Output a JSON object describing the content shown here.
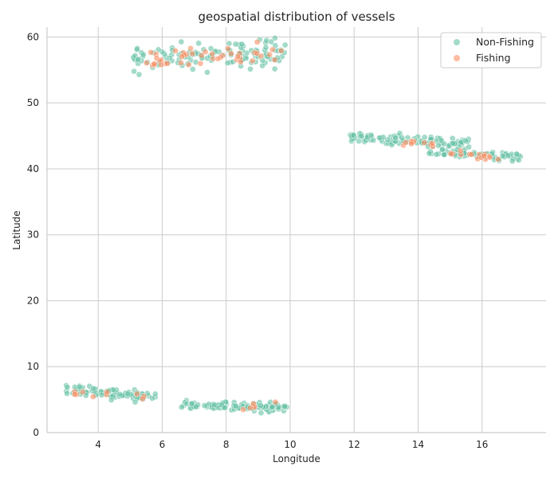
{
  "chart_data": {
    "type": "scatter",
    "title": "geospatial distribution of vessels",
    "xlabel": "Longitude",
    "ylabel": "Latitude",
    "xlim": [
      2.4,
      18.0
    ],
    "ylim": [
      0,
      61.5
    ],
    "xticks": [
      4,
      6,
      8,
      10,
      12,
      14,
      16
    ],
    "yticks": [
      0,
      10,
      20,
      30,
      40,
      50,
      60
    ],
    "grid": true,
    "legend_position": "top-right",
    "series": [
      {
        "name": "Non-Fishing",
        "color": "#66c2a5",
        "clusters": [
          {
            "x_range": [
              5.1,
              9.9
            ],
            "y_center": 57.1,
            "y_spread": 0.9,
            "count": 130,
            "tilt": 0.15
          },
          {
            "x_range": [
              11.8,
              15.7
            ],
            "y_center": 44.3,
            "y_spread": 0.35,
            "count": 110,
            "tilt": -0.35
          },
          {
            "x_range": [
              14.3,
              17.2
            ],
            "y_center": 42.2,
            "y_spread": 0.3,
            "count": 70,
            "tilt": -0.3
          },
          {
            "x_range": [
              3.0,
              5.9
            ],
            "y_center": 5.9,
            "y_spread": 0.4,
            "count": 90,
            "tilt": -0.4
          },
          {
            "x_range": [
              6.6,
              9.9
            ],
            "y_center": 4.0,
            "y_spread": 0.35,
            "count": 100,
            "tilt": -0.15
          }
        ]
      },
      {
        "name": "Fishing",
        "color": "#fc8d62",
        "clusters": [
          {
            "x_range": [
              5.4,
              9.8
            ],
            "y_center": 57.0,
            "y_spread": 0.8,
            "count": 45,
            "tilt": 0.2
          },
          {
            "x_range": [
              13.5,
              14.5
            ],
            "y_center": 43.9,
            "y_spread": 0.3,
            "count": 10,
            "tilt": -0.3
          },
          {
            "x_range": [
              14.5,
              16.6
            ],
            "y_center": 42.2,
            "y_spread": 0.3,
            "count": 15,
            "tilt": -0.3
          },
          {
            "x_range": [
              3.2,
              5.5
            ],
            "y_center": 5.7,
            "y_spread": 0.3,
            "count": 10,
            "tilt": -0.4
          },
          {
            "x_range": [
              8.5,
              9.6
            ],
            "y_center": 3.9,
            "y_spread": 0.3,
            "count": 6,
            "tilt": -0.1
          }
        ]
      }
    ]
  }
}
